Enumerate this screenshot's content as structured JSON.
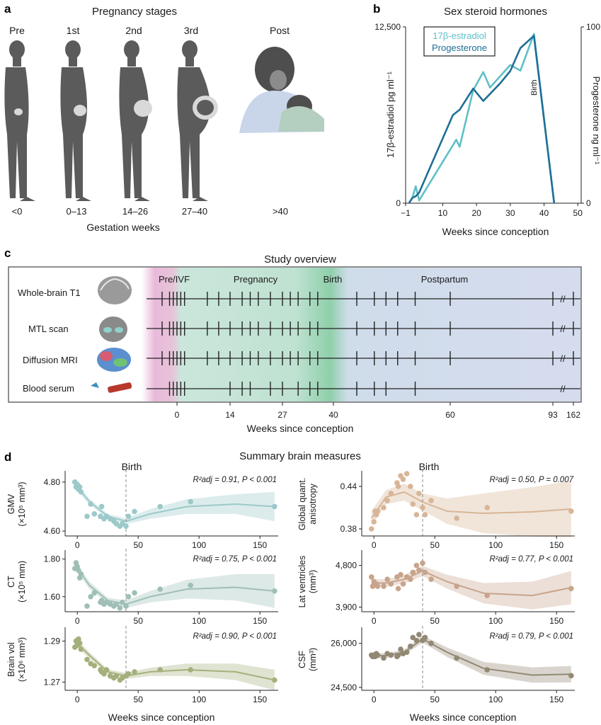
{
  "panel_a": {
    "letter": "a",
    "title": "Pregnancy stages",
    "stages": [
      {
        "label": "Pre",
        "weeks": "<0"
      },
      {
        "label": "1st",
        "weeks": "0–13"
      },
      {
        "label": "2nd",
        "weeks": "14–26"
      },
      {
        "label": "3rd",
        "weeks": "27–40"
      },
      {
        "label": "Post",
        "weeks": ">40"
      }
    ],
    "xlabel": "Gestation weeks"
  },
  "panel_b": {
    "letter": "b",
    "title": "Sex steroid hormones",
    "left_ylabel": "17β-estradiol pg ml⁻¹",
    "right_ylabel": "Progesterone ng ml⁻¹",
    "xlabel": "Weeks since conception",
    "birth_label": "Birth",
    "left_ticks": [
      "12,500",
      "0"
    ],
    "right_ticks": [
      "100",
      "0"
    ],
    "colors": {
      "estradiol": "#5ec0c6",
      "progesterone": "#1f6f96"
    }
  },
  "panel_c": {
    "letter": "c",
    "title": "Study overview",
    "phases": [
      "Pre/IVF",
      "Pregnancy",
      "Birth",
      "Postpartum"
    ],
    "rows": [
      "Whole-brain T1",
      "MTL scan",
      "Diffusion MRI",
      "Blood serum"
    ],
    "xticks": [
      "0",
      "14",
      "27",
      "40",
      "60",
      "93",
      "162"
    ],
    "xlabel": "Weeks since conception",
    "break_mark": "//"
  },
  "panel_d": {
    "letter": "d",
    "title": "Summary brain measures",
    "birth_label": "Birth",
    "xlabel": "Weeks since conception",
    "plots": [
      {
        "ylabel": "GMV",
        "yunit": "(×10⁵ mm³)",
        "yticks": [
          "4.80",
          "4.60"
        ],
        "stats": "R²adj = 0.91, P < 0.001",
        "color": "#9cc9c9"
      },
      {
        "ylabel": "CT",
        "yunit": "(×10⁵ mm)",
        "yticks": [
          "1.80",
          "1.60"
        ],
        "stats": "R²adj = 0.75, P < 0.001",
        "color": "#9fbfb6"
      },
      {
        "ylabel": "Brain vol",
        "yunit": "(×10⁶ mm³)",
        "yticks": [
          "1.29",
          "1.27"
        ],
        "stats": "R²adj = 0.90, P < 0.001",
        "color": "#a4b07c"
      },
      {
        "ylabel": "Global quant.",
        "yunit": "anisotropy",
        "yticks": [
          "0.44",
          "0.38"
        ],
        "stats": "R²adj = 0.50, P = 0.007",
        "color": "#d7b596"
      },
      {
        "ylabel": "Lat ventricles",
        "yunit": "(mm³)",
        "yticks": [
          "4,800",
          "3,900"
        ],
        "stats": "R²adj = 0.77, P < 0.001",
        "color": "#c8a48c"
      },
      {
        "ylabel": "CSF",
        "yunit": "(mm³)",
        "yticks": [
          "26,000",
          "24,500"
        ],
        "stats": "R²adj = 0.79, P < 0.001",
        "color": "#928874"
      }
    ],
    "xticks": [
      "0",
      "50",
      "100",
      "150"
    ]
  },
  "chart_data": [
    {
      "type": "line",
      "title": "Sex steroid hormones",
      "xlabel": "Weeks since conception",
      "ylabel": "17β-estradiol pg ml⁻¹",
      "y2label": "Progesterone ng ml⁻¹",
      "xlim": [
        -1,
        51
      ],
      "ylim": [
        0,
        12500
      ],
      "y2lim": [
        0,
        100
      ],
      "series": [
        {
          "name": "17β-estradiol",
          "axis": "left",
          "x": [
            0,
            1,
            2,
            3,
            14,
            15,
            19,
            22,
            24,
            30,
            33,
            37,
            43
          ],
          "y": [
            0,
            400,
            1200,
            200,
            4500,
            4000,
            8000,
            9300,
            8200,
            9800,
            9400,
            12000,
            0
          ]
        },
        {
          "name": "Progesterone",
          "axis": "right",
          "x": [
            0,
            1,
            2,
            3,
            13,
            15,
            19,
            22,
            27,
            30,
            33,
            37,
            43
          ],
          "y": [
            0,
            3,
            4,
            6,
            50,
            53,
            65,
            58,
            68,
            75,
            88,
            95,
            0
          ]
        }
      ]
    },
    {
      "type": "scatter",
      "title": "",
      "ylabel": "GMV (×10⁵ mm³)",
      "xlabel": "Weeks since conception",
      "xlim": [
        -10,
        165
      ],
      "ylim": [
        4.58,
        4.84
      ],
      "x": [
        -2,
        -1,
        0,
        1,
        2,
        3,
        8,
        11,
        14,
        19,
        20,
        22,
        24,
        27,
        30,
        32,
        35,
        37,
        40,
        42,
        47,
        68,
        93,
        162
      ],
      "y": [
        4.8,
        4.78,
        4.79,
        4.77,
        4.78,
        4.76,
        4.66,
        4.71,
        4.67,
        4.66,
        4.7,
        4.65,
        4.66,
        4.65,
        4.64,
        4.63,
        4.62,
        4.63,
        4.62,
        4.66,
        4.68,
        4.7,
        4.72,
        4.7
      ]
    },
    {
      "type": "scatter",
      "title": "",
      "ylabel": "CT (×10⁵ mm)",
      "xlabel": "Weeks since conception",
      "xlim": [
        -10,
        165
      ],
      "ylim": [
        1.52,
        1.84
      ],
      "x": [
        -2,
        -1,
        0,
        1,
        2,
        3,
        8,
        11,
        14,
        19,
        20,
        22,
        24,
        27,
        30,
        32,
        35,
        37,
        40,
        42,
        47,
        68,
        93,
        162
      ],
      "y": [
        1.75,
        1.78,
        1.76,
        1.74,
        1.7,
        1.72,
        1.55,
        1.6,
        1.62,
        1.57,
        1.58,
        1.56,
        1.57,
        1.56,
        1.55,
        1.56,
        1.54,
        1.57,
        1.55,
        1.6,
        1.62,
        1.64,
        1.66,
        1.63
      ]
    },
    {
      "type": "scatter",
      "title": "",
      "ylabel": "Brain vol (×10⁶ mm³)",
      "xlabel": "Weeks since conception",
      "xlim": [
        -10,
        165
      ],
      "ylim": [
        1.266,
        1.296
      ],
      "x": [
        -2,
        -1,
        0,
        1,
        2,
        3,
        8,
        11,
        14,
        19,
        20,
        22,
        24,
        27,
        30,
        32,
        35,
        37,
        40,
        42,
        47,
        68,
        93,
        162
      ],
      "y": [
        1.287,
        1.29,
        1.288,
        1.291,
        1.289,
        1.286,
        1.281,
        1.279,
        1.278,
        1.276,
        1.275,
        1.274,
        1.276,
        1.273,
        1.272,
        1.273,
        1.271,
        1.272,
        1.273,
        1.274,
        1.275,
        1.276,
        1.276,
        1.271
      ]
    },
    {
      "type": "scatter",
      "title": "",
      "ylabel": "Global quant. anisotropy",
      "xlabel": "Weeks since conception",
      "xlim": [
        -10,
        165
      ],
      "ylim": [
        0.37,
        0.46
      ],
      "x": [
        -2,
        0,
        1,
        2,
        3,
        8,
        11,
        14,
        19,
        20,
        22,
        24,
        27,
        30,
        32,
        35,
        37,
        40,
        42,
        47,
        68,
        93,
        162
      ],
      "y": [
        0.38,
        0.39,
        0.405,
        0.4,
        0.405,
        0.41,
        0.42,
        0.43,
        0.445,
        0.44,
        0.455,
        0.45,
        0.458,
        0.44,
        0.415,
        0.4,
        0.43,
        0.41,
        0.4,
        0.42,
        0.395,
        0.41,
        0.405
      ]
    },
    {
      "type": "scatter",
      "title": "",
      "ylabel": "Lat ventricles (mm³)",
      "xlabel": "Weeks since conception",
      "xlim": [
        -10,
        165
      ],
      "ylim": [
        3800,
        5100
      ],
      "x": [
        -2,
        -1,
        0,
        1,
        2,
        3,
        8,
        11,
        14,
        19,
        20,
        22,
        24,
        27,
        30,
        32,
        35,
        37,
        40,
        42,
        47,
        68,
        93,
        162
      ],
      "y": [
        4550,
        4350,
        4450,
        4400,
        4400,
        4350,
        4350,
        4500,
        4400,
        4550,
        4300,
        4600,
        4400,
        4550,
        4500,
        4650,
        4800,
        4700,
        4850,
        4650,
        4500,
        4350,
        4150,
        4300
      ]
    },
    {
      "type": "scatter",
      "title": "",
      "ylabel": "CSF (mm³)",
      "xlabel": "Weeks since conception",
      "xlim": [
        -10,
        165
      ],
      "ylim": [
        24400,
        26500
      ],
      "x": [
        -2,
        -1,
        0,
        1,
        2,
        3,
        8,
        11,
        14,
        19,
        20,
        22,
        24,
        27,
        30,
        32,
        35,
        37,
        40,
        42,
        47,
        68,
        93,
        162
      ],
      "y": [
        25600,
        25550,
        25600,
        25550,
        25650,
        25600,
        25500,
        25650,
        25600,
        25550,
        25600,
        25800,
        25650,
        25700,
        25900,
        26200,
        26100,
        26300,
        26100,
        26200,
        26000,
        25500,
        25100,
        24900
      ]
    }
  ]
}
